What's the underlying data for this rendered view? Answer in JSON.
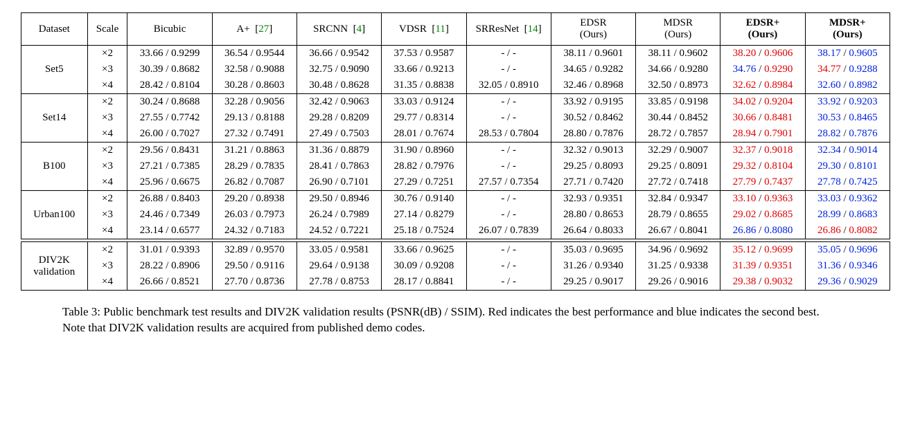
{
  "table": {
    "font_family": "Times New Roman",
    "border_color": "#000000",
    "highlight_colors": {
      "best": "#e00000",
      "second": "#0020e0",
      "cite": "#008000"
    },
    "columns": [
      {
        "key": "dataset",
        "label": "Dataset",
        "class": "dataset-col"
      },
      {
        "key": "scale",
        "label": "Scale",
        "class": "scale-col"
      },
      {
        "key": "bicubic",
        "label": "Bicubic",
        "class": "data-col"
      },
      {
        "key": "aplus",
        "label": "A+",
        "cite": "27",
        "class": "data-col"
      },
      {
        "key": "srcnn",
        "label": "SRCNN",
        "cite": "4",
        "class": "data-col"
      },
      {
        "key": "vdsr",
        "label": "VDSR",
        "cite": "11",
        "class": "data-col"
      },
      {
        "key": "srresnet",
        "label": "SRResNet",
        "cite": "14",
        "class": "data-col"
      },
      {
        "key": "edsr",
        "label": "EDSR",
        "sub": "(Ours)",
        "class": "data-col"
      },
      {
        "key": "mdsr",
        "label": "MDSR",
        "sub": "(Ours)",
        "class": "data-col"
      },
      {
        "key": "edsrp",
        "label": "EDSR+",
        "sub": "(Ours)",
        "bold": true,
        "class": "data-col"
      },
      {
        "key": "mdsrp",
        "label": "MDSR+",
        "sub": "(Ours)",
        "bold": true,
        "class": "data-col"
      }
    ],
    "groups": [
      {
        "dataset": "Set5",
        "rows": [
          {
            "scale": "×2",
            "cells": [
              {
                "p": "33.66",
                "s": "0.9299"
              },
              {
                "p": "36.54",
                "s": "0.9544"
              },
              {
                "p": "36.66",
                "s": "0.9542"
              },
              {
                "p": "37.53",
                "s": "0.9587"
              },
              {
                "dash": true
              },
              {
                "p": "38.11",
                "s": "0.9601"
              },
              {
                "p": "38.11",
                "s": "0.9602"
              },
              {
                "p": "38.20",
                "s": "0.9606",
                "pc": "red",
                "sc": "red"
              },
              {
                "p": "38.17",
                "s": "0.9605",
                "pc": "blue",
                "sc": "blue"
              }
            ]
          },
          {
            "scale": "×3",
            "cells": [
              {
                "p": "30.39",
                "s": "0.8682"
              },
              {
                "p": "32.58",
                "s": "0.9088"
              },
              {
                "p": "32.75",
                "s": "0.9090"
              },
              {
                "p": "33.66",
                "s": "0.9213"
              },
              {
                "dash": true
              },
              {
                "p": "34.65",
                "s": "0.9282"
              },
              {
                "p": "34.66",
                "s": "0.9280"
              },
              {
                "p": "34.76",
                "s": "0.9290",
                "pc": "blue",
                "sc": "red"
              },
              {
                "p": "34.77",
                "s": "0.9288",
                "pc": "red",
                "sc": "blue"
              }
            ]
          },
          {
            "scale": "×4",
            "cells": [
              {
                "p": "28.42",
                "s": "0.8104"
              },
              {
                "p": "30.28",
                "s": "0.8603"
              },
              {
                "p": "30.48",
                "s": "0.8628"
              },
              {
                "p": "31.35",
                "s": "0.8838"
              },
              {
                "p": "32.05",
                "s": "0.8910"
              },
              {
                "p": "32.46",
                "s": "0.8968"
              },
              {
                "p": "32.50",
                "s": "0.8973"
              },
              {
                "p": "32.62",
                "s": "0.8984",
                "pc": "red",
                "sc": "red"
              },
              {
                "p": "32.60",
                "s": "0.8982",
                "pc": "blue",
                "sc": "blue"
              }
            ]
          }
        ]
      },
      {
        "dataset": "Set14",
        "rows": [
          {
            "scale": "×2",
            "cells": [
              {
                "p": "30.24",
                "s": "0.8688"
              },
              {
                "p": "32.28",
                "s": "0.9056"
              },
              {
                "p": "32.42",
                "s": "0.9063"
              },
              {
                "p": "33.03",
                "s": "0.9124"
              },
              {
                "dash": true
              },
              {
                "p": "33.92",
                "s": "0.9195"
              },
              {
                "p": "33.85",
                "s": "0.9198"
              },
              {
                "p": "34.02",
                "s": "0.9204",
                "pc": "red",
                "sc": "red"
              },
              {
                "p": "33.92",
                "s": "0.9203",
                "pc": "blue",
                "sc": "blue"
              }
            ]
          },
          {
            "scale": "×3",
            "cells": [
              {
                "p": "27.55",
                "s": "0.7742"
              },
              {
                "p": "29.13",
                "s": "0.8188"
              },
              {
                "p": "29.28",
                "s": "0.8209"
              },
              {
                "p": "29.77",
                "s": "0.8314"
              },
              {
                "dash": true
              },
              {
                "p": "30.52",
                "s": "0.8462"
              },
              {
                "p": "30.44",
                "s": "0.8452"
              },
              {
                "p": "30.66",
                "s": "0.8481",
                "pc": "red",
                "sc": "red"
              },
              {
                "p": "30.53",
                "s": "0.8465",
                "pc": "blue",
                "sc": "blue"
              }
            ]
          },
          {
            "scale": "×4",
            "cells": [
              {
                "p": "26.00",
                "s": "0.7027"
              },
              {
                "p": "27.32",
                "s": "0.7491"
              },
              {
                "p": "27.49",
                "s": "0.7503"
              },
              {
                "p": "28.01",
                "s": "0.7674"
              },
              {
                "p": "28.53",
                "s": "0.7804"
              },
              {
                "p": "28.80",
                "s": "0.7876"
              },
              {
                "p": "28.72",
                "s": "0.7857"
              },
              {
                "p": "28.94",
                "s": "0.7901",
                "pc": "red",
                "sc": "red"
              },
              {
                "p": "28.82",
                "s": "0.7876",
                "pc": "blue",
                "sc": "blue"
              }
            ]
          }
        ]
      },
      {
        "dataset": "B100",
        "rows": [
          {
            "scale": "×2",
            "cells": [
              {
                "p": "29.56",
                "s": "0.8431"
              },
              {
                "p": "31.21",
                "s": "0.8863"
              },
              {
                "p": "31.36",
                "s": "0.8879"
              },
              {
                "p": "31.90",
                "s": "0.8960"
              },
              {
                "dash": true
              },
              {
                "p": "32.32",
                "s": "0.9013"
              },
              {
                "p": "32.29",
                "s": "0.9007"
              },
              {
                "p": "32.37",
                "s": "0.9018",
                "pc": "red",
                "sc": "red"
              },
              {
                "p": "32.34",
                "s": "0.9014",
                "pc": "blue",
                "sc": "blue"
              }
            ]
          },
          {
            "scale": "×3",
            "cells": [
              {
                "p": "27.21",
                "s": "0.7385"
              },
              {
                "p": "28.29",
                "s": "0.7835"
              },
              {
                "p": "28.41",
                "s": "0.7863"
              },
              {
                "p": "28.82",
                "s": "0.7976"
              },
              {
                "dash": true
              },
              {
                "p": "29.25",
                "s": "0.8093"
              },
              {
                "p": "29.25",
                "s": "0.8091"
              },
              {
                "p": "29.32",
                "s": "0.8104",
                "pc": "red",
                "sc": "red"
              },
              {
                "p": "29.30",
                "s": "0.8101",
                "pc": "blue",
                "sc": "blue"
              }
            ]
          },
          {
            "scale": "×4",
            "cells": [
              {
                "p": "25.96",
                "s": "0.6675"
              },
              {
                "p": "26.82",
                "s": "0.7087"
              },
              {
                "p": "26.90",
                "s": "0.7101"
              },
              {
                "p": "27.29",
                "s": "0.7251"
              },
              {
                "p": "27.57",
                "s": "0.7354"
              },
              {
                "p": "27.71",
                "s": "0.7420"
              },
              {
                "p": "27.72",
                "s": "0.7418"
              },
              {
                "p": "27.79",
                "s": "0.7437",
                "pc": "red",
                "sc": "red"
              },
              {
                "p": "27.78",
                "s": "0.7425",
                "pc": "blue",
                "sc": "blue"
              }
            ]
          }
        ]
      },
      {
        "dataset": "Urban100",
        "rows": [
          {
            "scale": "×2",
            "cells": [
              {
                "p": "26.88",
                "s": "0.8403"
              },
              {
                "p": "29.20",
                "s": "0.8938"
              },
              {
                "p": "29.50",
                "s": "0.8946"
              },
              {
                "p": "30.76",
                "s": "0.9140"
              },
              {
                "dash": true
              },
              {
                "p": "32.93",
                "s": "0.9351"
              },
              {
                "p": "32.84",
                "s": "0.9347"
              },
              {
                "p": "33.10",
                "s": "0.9363",
                "pc": "red",
                "sc": "red"
              },
              {
                "p": "33.03",
                "s": "0.9362",
                "pc": "blue",
                "sc": "blue"
              }
            ]
          },
          {
            "scale": "×3",
            "cells": [
              {
                "p": "24.46",
                "s": "0.7349"
              },
              {
                "p": "26.03",
                "s": "0.7973"
              },
              {
                "p": "26.24",
                "s": "0.7989"
              },
              {
                "p": "27.14",
                "s": "0.8279"
              },
              {
                "dash": true
              },
              {
                "p": "28.80",
                "s": "0.8653"
              },
              {
                "p": "28.79",
                "s": "0.8655"
              },
              {
                "p": "29.02",
                "s": "0.8685",
                "pc": "red",
                "sc": "red"
              },
              {
                "p": "28.99",
                "s": "0.8683",
                "pc": "blue",
                "sc": "blue"
              }
            ]
          },
          {
            "scale": "×4",
            "cells": [
              {
                "p": "23.14",
                "s": "0.6577"
              },
              {
                "p": "24.32",
                "s": "0.7183"
              },
              {
                "p": "24.52",
                "s": "0.7221"
              },
              {
                "p": "25.18",
                "s": "0.7524"
              },
              {
                "p": "26.07",
                "s": "0.7839"
              },
              {
                "p": "26.64",
                "s": "0.8033"
              },
              {
                "p": "26.67",
                "s": "0.8041"
              },
              {
                "p": "26.86",
                "s": "0.8080",
                "pc": "blue",
                "sc": "blue"
              },
              {
                "p": "26.86",
                "s": "0.8082",
                "pc": "red",
                "sc": "red"
              }
            ]
          }
        ]
      },
      {
        "dataset": "DIV2K validation",
        "dataset_lines": [
          "DIV2K",
          "validation"
        ],
        "double_top": true,
        "rows": [
          {
            "scale": "×2",
            "cells": [
              {
                "p": "31.01",
                "s": "0.9393"
              },
              {
                "p": "32.89",
                "s": "0.9570"
              },
              {
                "p": "33.05",
                "s": "0.9581"
              },
              {
                "p": "33.66",
                "s": "0.9625"
              },
              {
                "dash": true
              },
              {
                "p": "35.03",
                "s": "0.9695"
              },
              {
                "p": "34.96",
                "s": "0.9692"
              },
              {
                "p": "35.12",
                "s": "0.9699",
                "pc": "red",
                "sc": "red"
              },
              {
                "p": "35.05",
                "s": "0.9696",
                "pc": "blue",
                "sc": "blue"
              }
            ]
          },
          {
            "scale": "×3",
            "cells": [
              {
                "p": "28.22",
                "s": "0.8906"
              },
              {
                "p": "29.50",
                "s": "0.9116"
              },
              {
                "p": "29.64",
                "s": "0.9138"
              },
              {
                "p": "30.09",
                "s": "0.9208"
              },
              {
                "dash": true
              },
              {
                "p": "31.26",
                "s": "0.9340"
              },
              {
                "p": "31.25",
                "s": "0.9338"
              },
              {
                "p": "31.39",
                "s": "0.9351",
                "pc": "red",
                "sc": "red"
              },
              {
                "p": "31.36",
                "s": "0.9346",
                "pc": "blue",
                "sc": "blue"
              }
            ]
          },
          {
            "scale": "×4",
            "cells": [
              {
                "p": "26.66",
                "s": "0.8521"
              },
              {
                "p": "27.70",
                "s": "0.8736"
              },
              {
                "p": "27.78",
                "s": "0.8753"
              },
              {
                "p": "28.17",
                "s": "0.8841"
              },
              {
                "dash": true
              },
              {
                "p": "29.25",
                "s": "0.9017"
              },
              {
                "p": "29.26",
                "s": "0.9016"
              },
              {
                "p": "29.38",
                "s": "0.9032",
                "pc": "red",
                "sc": "red"
              },
              {
                "p": "29.36",
                "s": "0.9029",
                "pc": "blue",
                "sc": "blue"
              }
            ]
          }
        ]
      }
    ]
  },
  "caption": "Table 3: Public benchmark test results and DIV2K validation results (PSNR(dB) / SSIM). Red indicates the best performance and blue indicates the second best. Note that DIV2K validation results are acquired from published demo codes."
}
